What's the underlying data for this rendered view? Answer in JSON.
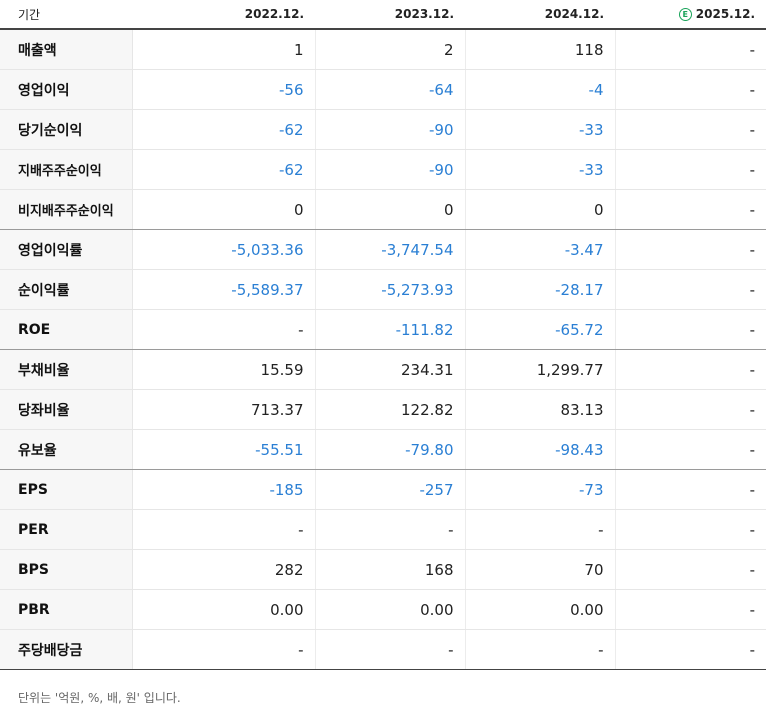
{
  "header": {
    "period_label": "기간",
    "columns": [
      "2022.12.",
      "2023.12.",
      "2024.12.",
      "2025.12."
    ],
    "estimate_mark": "E"
  },
  "rows": [
    {
      "label": "매출액",
      "values": [
        "1",
        "2",
        "118",
        "-"
      ]
    },
    {
      "label": "영업이익",
      "values": [
        "-56",
        "-64",
        "-4",
        "-"
      ]
    },
    {
      "label": "당기순이익",
      "values": [
        "-62",
        "-90",
        "-33",
        "-"
      ]
    },
    {
      "label": "지배주주순이익",
      "values": [
        "-62",
        "-90",
        "-33",
        "-"
      ]
    },
    {
      "label": "비지배주주순이익",
      "values": [
        "0",
        "0",
        "0",
        "-"
      ]
    },
    {
      "label": "영업이익률",
      "values": [
        "-5,033.36",
        "-3,747.54",
        "-3.47",
        "-"
      ]
    },
    {
      "label": "순이익률",
      "values": [
        "-5,589.37",
        "-5,273.93",
        "-28.17",
        "-"
      ]
    },
    {
      "label": "ROE",
      "values": [
        "-",
        "-111.82",
        "-65.72",
        "-"
      ]
    },
    {
      "label": "부채비율",
      "values": [
        "15.59",
        "234.31",
        "1,299.77",
        "-"
      ]
    },
    {
      "label": "당좌비율",
      "values": [
        "713.37",
        "122.82",
        "83.13",
        "-"
      ]
    },
    {
      "label": "유보율",
      "values": [
        "-55.51",
        "-79.80",
        "-98.43",
        "-"
      ]
    },
    {
      "label": "EPS",
      "values": [
        "-185",
        "-257",
        "-73",
        "-"
      ]
    },
    {
      "label": "PER",
      "values": [
        "-",
        "-",
        "-",
        "-"
      ]
    },
    {
      "label": "BPS",
      "values": [
        "282",
        "168",
        "70",
        "-"
      ]
    },
    {
      "label": "PBR",
      "values": [
        "0.00",
        "0.00",
        "0.00",
        "-"
      ]
    },
    {
      "label": "주당배당금",
      "values": [
        "-",
        "-",
        "-",
        "-"
      ]
    }
  ],
  "colors": {
    "negative": "#2a7fd4",
    "estimate": "#1aa35a"
  },
  "note": "단위는 '억원, %, 배, 원' 입니다."
}
